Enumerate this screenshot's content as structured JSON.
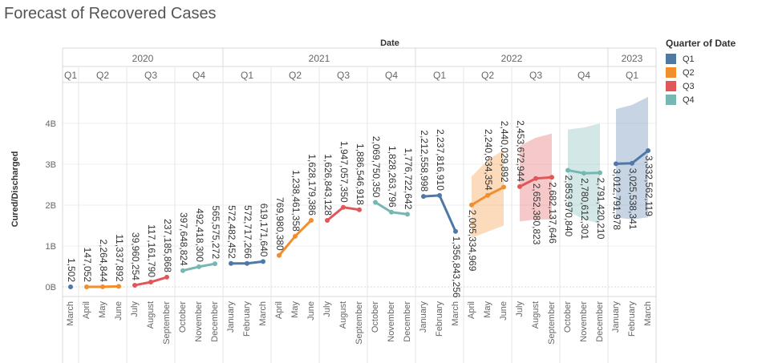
{
  "title": "Forecast of Recovered Cases",
  "chart_data": {
    "type": "line",
    "title": "Forecast of Recovered Cases",
    "column_header": "Date",
    "ylabel": "Cured/Discharged",
    "yticks": [
      {
        "value": 0,
        "label": "0B"
      },
      {
        "value": 1000000000,
        "label": "1B"
      },
      {
        "value": 2000000000,
        "label": "2B"
      },
      {
        "value": 3000000000,
        "label": "3B"
      },
      {
        "value": 4000000000,
        "label": "4B"
      }
    ],
    "ylim": [
      -100000000,
      4650000000
    ],
    "legend": {
      "title": "Quarter of Date",
      "position": "right",
      "items": [
        {
          "name": "Q1",
          "color": "#4e79a7"
        },
        {
          "name": "Q2",
          "color": "#f28e2b"
        },
        {
          "name": "Q3",
          "color": "#e15759"
        },
        {
          "name": "Q4",
          "color": "#76b7b2"
        }
      ]
    },
    "years": [
      {
        "label": "2020",
        "quarters": [
          0,
          1,
          2,
          3
        ]
      },
      {
        "label": "2021",
        "quarters": [
          4,
          5,
          6,
          7
        ]
      },
      {
        "label": "2022",
        "quarters": [
          8,
          9,
          10,
          11
        ]
      },
      {
        "label": "2023",
        "quarters": [
          12
        ]
      }
    ],
    "quarters": [
      {
        "label": "Q1",
        "series": "Q1",
        "forecast": false,
        "points": [
          {
            "month": "March",
            "value": 1502,
            "label": "1,502"
          }
        ]
      },
      {
        "label": "Q2",
        "series": "Q2",
        "forecast": false,
        "points": [
          {
            "month": "April",
            "value": 147052,
            "label": "147,052"
          },
          {
            "month": "May",
            "value": 2264844,
            "label": "2,264,844"
          },
          {
            "month": "June",
            "value": 11337892,
            "label": "11,337,892"
          }
        ]
      },
      {
        "label": "Q3",
        "series": "Q3",
        "forecast": false,
        "points": [
          {
            "month": "July",
            "value": 39960254,
            "label": "39,960,254"
          },
          {
            "month": "August",
            "value": 117161790,
            "label": "117,161,790"
          },
          {
            "month": "September",
            "value": 237185868,
            "label": "237,185,868"
          }
        ]
      },
      {
        "label": "Q4",
        "series": "Q4",
        "forecast": false,
        "points": [
          {
            "month": "October",
            "value": 397648824,
            "label": "397,648,824"
          },
          {
            "month": "November",
            "value": 492418300,
            "label": "492,418,300"
          },
          {
            "month": "December",
            "value": 565575272,
            "label": "565,575,272"
          }
        ]
      },
      {
        "label": "Q1",
        "series": "Q1",
        "forecast": false,
        "points": [
          {
            "month": "January",
            "value": 572482452,
            "label": "572,482,452"
          },
          {
            "month": "February",
            "value": 572717266,
            "label": "572,717,266"
          },
          {
            "month": "March",
            "value": 619171640,
            "label": "619,171,640"
          }
        ]
      },
      {
        "label": "Q2",
        "series": "Q2",
        "forecast": false,
        "points": [
          {
            "month": "April",
            "value": 769980380,
            "label": "769,980,380"
          },
          {
            "month": "May",
            "value": 1238461358,
            "label": "1,238,461,358"
          },
          {
            "month": "June",
            "value": 1628179386,
            "label": "1,628,179,386"
          }
        ]
      },
      {
        "label": "Q3",
        "series": "Q3",
        "forecast": false,
        "points": [
          {
            "month": "July",
            "value": 1626843128,
            "label": "1,626,843,128"
          },
          {
            "month": "August",
            "value": 1947057350,
            "label": "1,947,057,350"
          },
          {
            "month": "September",
            "value": 1886546918,
            "label": "1,886,546,918"
          }
        ]
      },
      {
        "label": "Q4",
        "series": "Q4",
        "forecast": false,
        "points": [
          {
            "month": "October",
            "value": 2069750350,
            "label": "2,069,750,350"
          },
          {
            "month": "November",
            "value": 1828263796,
            "label": "1,828,263,796"
          },
          {
            "month": "December",
            "value": 1776722642,
            "label": "1,776,722,642"
          }
        ]
      },
      {
        "label": "Q1",
        "series": "Q1",
        "forecast": false,
        "points": [
          {
            "month": "January",
            "value": 2212558998,
            "label": "2,212,558,998"
          },
          {
            "month": "February",
            "value": 2237816910,
            "label": "2,237,816,910"
          },
          {
            "month": "March",
            "value": 1356843256,
            "label": "1,356,843,256"
          }
        ]
      },
      {
        "label": "Q2",
        "series": "Q2",
        "forecast": true,
        "points": [
          {
            "month": "April",
            "value": 2005334969,
            "label": "2,005,334,969",
            "lo": 1200000000,
            "hi": 2700000000
          },
          {
            "month": "May",
            "value": 2240634354,
            "label": "2,240,634,354",
            "lo": 1350000000,
            "hi": 3100000000
          },
          {
            "month": "June",
            "value": 2440029892,
            "label": "2,440,029,892",
            "lo": 1500000000,
            "hi": 3350000000
          }
        ]
      },
      {
        "label": "Q3",
        "series": "Q3",
        "forecast": true,
        "points": [
          {
            "month": "July",
            "value": 2453672944,
            "label": "2,453,672,944",
            "lo": 1600000000,
            "hi": 3450000000
          },
          {
            "month": "August",
            "value": 2652380823,
            "label": "2,652,380,823",
            "lo": 1650000000,
            "hi": 3650000000
          },
          {
            "month": "September",
            "value": 2682137646,
            "label": "2,682,137,646",
            "lo": 1650000000,
            "hi": 3750000000
          }
        ]
      },
      {
        "label": "Q4",
        "series": "Q4",
        "forecast": true,
        "points": [
          {
            "month": "October",
            "value": 2853970840,
            "label": "2,853,970,840",
            "lo": 1850000000,
            "hi": 3850000000
          },
          {
            "month": "November",
            "value": 2780612301,
            "label": "2,780,612,301",
            "lo": 1650000000,
            "hi": 3900000000
          },
          {
            "month": "December",
            "value": 2791420210,
            "label": "2,791,420,210",
            "lo": 1550000000,
            "hi": 4000000000
          }
        ]
      },
      {
        "label": "Q1",
        "series": "Q1",
        "forecast": true,
        "points": [
          {
            "month": "January",
            "value": 3012791978,
            "label": "3,012,791,978",
            "lo": 1700000000,
            "hi": 4350000000
          },
          {
            "month": "February",
            "value": 3025538341,
            "label": "3,025,538,341",
            "lo": 1650000000,
            "hi": 4450000000
          },
          {
            "month": "March",
            "value": 3332562119,
            "label": "3,332,562,119",
            "lo": 1700000000,
            "hi": 4650000000
          }
        ]
      }
    ],
    "grid": true
  }
}
